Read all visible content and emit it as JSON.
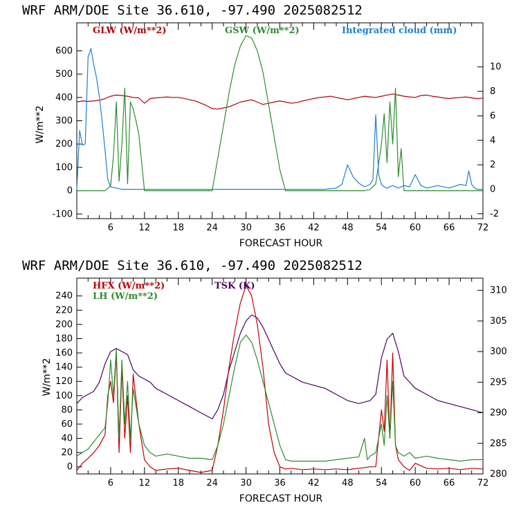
{
  "chart_data": [
    {
      "type": "line",
      "title": "WRF  ARM/DOE Site  36.610, -97.490  2025082512",
      "xlabel": "FORECAST HOUR",
      "ylabel": "W/m**2",
      "xlim": [
        0,
        72
      ],
      "ylim": [
        -120,
        720
      ],
      "y2lim": [
        -2.4,
        13.6
      ],
      "xticks": [
        6,
        12,
        18,
        24,
        30,
        36,
        42,
        48,
        54,
        60,
        66,
        72
      ],
      "yticks": [
        -100,
        0,
        100,
        200,
        300,
        400,
        500,
        600
      ],
      "y2ticks": [
        -2,
        0,
        2,
        4,
        6,
        8,
        10
      ],
      "series": [
        {
          "name": "GLW (W/m**2)",
          "color": "#b00000",
          "axis": "left",
          "x": [
            0,
            1,
            2,
            3,
            4,
            5,
            6,
            7,
            8,
            9,
            10,
            11,
            12,
            13,
            14,
            15,
            16,
            17,
            18,
            19,
            20,
            21,
            22,
            23,
            24,
            25,
            26,
            27,
            28,
            29,
            30,
            31,
            32,
            33,
            34,
            35,
            36,
            37,
            38,
            39,
            40,
            41,
            42,
            43,
            44,
            45,
            46,
            47,
            48,
            49,
            50,
            51,
            52,
            53,
            54,
            55,
            56,
            57,
            58,
            59,
            60,
            61,
            62,
            63,
            64,
            65,
            66,
            67,
            68,
            69,
            70,
            71,
            72
          ],
          "y": [
            380,
            385,
            383,
            385,
            388,
            395,
            405,
            410,
            408,
            405,
            400,
            398,
            375,
            395,
            398,
            400,
            402,
            400,
            400,
            396,
            390,
            385,
            375,
            365,
            352,
            350,
            355,
            360,
            370,
            380,
            385,
            390,
            380,
            370,
            375,
            380,
            385,
            380,
            375,
            378,
            385,
            390,
            395,
            400,
            402,
            405,
            400,
            395,
            390,
            395,
            400,
            405,
            402,
            400,
            405,
            410,
            415,
            410,
            405,
            402,
            400,
            408,
            410,
            405,
            402,
            398,
            395,
            398,
            400,
            402,
            398,
            395,
            397
          ]
        },
        {
          "name": "GSW (W/m**2)",
          "color": "#2e8b2e",
          "axis": "left",
          "x": [
            0,
            1,
            2,
            3,
            4,
            5,
            6,
            6.5,
            7,
            7.5,
            8,
            8.5,
            9,
            9.5,
            10,
            10.5,
            11,
            11.5,
            12,
            24,
            25,
            26,
            27,
            28,
            29,
            30,
            31,
            32,
            33,
            34,
            35,
            36,
            37,
            50,
            51,
            52,
            53,
            54,
            54.5,
            55,
            55.5,
            56,
            56.5,
            57,
            57.5,
            58,
            60,
            72
          ],
          "y": [
            0,
            0,
            0,
            0,
            0,
            0,
            20,
            150,
            380,
            40,
            200,
            440,
            30,
            380,
            350,
            300,
            240,
            120,
            0,
            0,
            140,
            280,
            420,
            540,
            620,
            665,
            655,
            600,
            510,
            370,
            230,
            90,
            0,
            0,
            0,
            5,
            30,
            200,
            330,
            120,
            380,
            200,
            440,
            60,
            180,
            0,
            0,
            0
          ]
        },
        {
          "name": "Integrated cloud (mm)",
          "color": "#1e7fd0",
          "axis": "right",
          "x": [
            0,
            0.5,
            1,
            1.5,
            2,
            2.5,
            3,
            3.5,
            4,
            4.5,
            5,
            5.5,
            6,
            7,
            8,
            12,
            24,
            36,
            44,
            46,
            47,
            48,
            49,
            50,
            51,
            52,
            52.5,
            53,
            53.5,
            54,
            54.5,
            55,
            56,
            57,
            58,
            59,
            60,
            61,
            62,
            64,
            66,
            68,
            69,
            69.5,
            70,
            70.5,
            71,
            72
          ],
          "y": [
            0,
            4.8,
            3.6,
            3.7,
            10.8,
            11.5,
            10.2,
            9.1,
            7.6,
            5.5,
            3.2,
            0.8,
            0.2,
            0.1,
            0,
            0,
            0,
            0,
            0,
            0.1,
            0.4,
            2.0,
            1.0,
            0.5,
            0.2,
            0.4,
            0.8,
            6.1,
            1.2,
            0.4,
            0.2,
            0.1,
            0.3,
            0.1,
            0.3,
            0.2,
            1.2,
            0.3,
            0.1,
            0.3,
            0.1,
            0.4,
            0.3,
            1.5,
            0.4,
            0.1,
            0,
            0
          ]
        }
      ]
    },
    {
      "type": "line",
      "title": "WRF  ARM/DOE Site  36.610, -97.490  2025082512",
      "xlabel": "FORECAST HOUR",
      "ylabel": "W/m**2",
      "xlim": [
        0,
        72
      ],
      "ylim": [
        -10,
        265
      ],
      "y2lim": [
        280,
        312
      ],
      "xticks": [
        6,
        12,
        18,
        24,
        30,
        36,
        42,
        48,
        54,
        60,
        66,
        72
      ],
      "yticks": [
        0,
        20,
        40,
        60,
        80,
        100,
        120,
        140,
        160,
        180,
        200,
        220,
        240
      ],
      "y2ticks": [
        280,
        285,
        290,
        295,
        300,
        305,
        310
      ],
      "series": [
        {
          "name": "TSK (K)",
          "color": "#4b0060",
          "axis": "right",
          "x": [
            0,
            1,
            2,
            3,
            4,
            5,
            6,
            7,
            8,
            9,
            10,
            11,
            12,
            13,
            14,
            16,
            18,
            20,
            22,
            24,
            25,
            26,
            27,
            28,
            29,
            30,
            31,
            32,
            33,
            34,
            35,
            36,
            37,
            38,
            40,
            42,
            44,
            46,
            48,
            50,
            52,
            53,
            54,
            55,
            56,
            57,
            58,
            60,
            62,
            64,
            66,
            68,
            70,
            72
          ],
          "y": [
            291.5,
            292.5,
            293,
            293.5,
            295,
            298,
            300,
            300.5,
            300,
            299.5,
            297,
            296,
            295.5,
            295,
            294,
            293,
            292,
            291,
            290,
            289,
            290.5,
            293,
            297,
            300,
            303,
            305,
            306,
            305.5,
            304,
            302,
            300,
            298,
            296.5,
            296,
            295,
            294.5,
            294,
            293,
            292,
            291.5,
            292,
            293,
            299,
            302,
            303,
            300,
            296,
            294,
            293,
            292,
            291.5,
            291,
            290.5,
            290
          ]
        },
        {
          "name": "HFX (W/m**2)",
          "color": "#c00000",
          "axis": "left",
          "x": [
            0,
            1,
            2,
            3,
            4,
            5,
            5.5,
            6,
            6.5,
            7,
            7.5,
            8,
            8.5,
            9,
            9.5,
            10,
            11,
            12,
            13,
            14,
            16,
            18,
            20,
            22,
            24,
            25,
            26,
            27,
            28,
            29,
            30,
            31,
            32,
            33,
            34,
            35,
            36,
            37,
            38,
            40,
            42,
            44,
            46,
            48,
            50,
            52,
            53,
            54,
            54.5,
            55,
            55.5,
            56,
            56.5,
            57,
            58,
            59,
            60,
            62,
            64,
            66,
            68,
            70,
            72
          ],
          "y": [
            -5,
            5,
            12,
            20,
            30,
            45,
            100,
            120,
            90,
            160,
            20,
            140,
            40,
            100,
            20,
            130,
            60,
            10,
            0,
            -5,
            -3,
            -2,
            -5,
            -8,
            -5,
            30,
            80,
            140,
            190,
            230,
            255,
            240,
            200,
            140,
            60,
            20,
            0,
            -3,
            -2,
            -4,
            -3,
            -4,
            -3,
            -4,
            -2,
            0,
            0,
            80,
            50,
            150,
            40,
            160,
            30,
            10,
            0,
            -5,
            5,
            -2,
            -3,
            -2,
            -4,
            -2,
            -3
          ]
        },
        {
          "name": "LH (W/m**2)",
          "color": "#2e8b2e",
          "axis": "left",
          "x": [
            0,
            1,
            2,
            3,
            4,
            5,
            5.5,
            6,
            6.5,
            7,
            7.5,
            8,
            8.5,
            9,
            9.5,
            10,
            11,
            12,
            13,
            14,
            16,
            18,
            20,
            22,
            24,
            25,
            26,
            27,
            28,
            29,
            30,
            31,
            32,
            33,
            34,
            35,
            36,
            37,
            38,
            40,
            42,
            44,
            46,
            48,
            50,
            51,
            51.5,
            52,
            53,
            54,
            54.5,
            55,
            55.5,
            56,
            56.5,
            57,
            58,
            59,
            60,
            62,
            64,
            66,
            68,
            70,
            72
          ],
          "y": [
            15,
            20,
            25,
            35,
            45,
            55,
            90,
            150,
            100,
            165,
            40,
            150,
            60,
            120,
            40,
            110,
            60,
            30,
            20,
            15,
            18,
            15,
            12,
            12,
            10,
            30,
            60,
            100,
            140,
            175,
            185,
            175,
            150,
            120,
            90,
            60,
            30,
            10,
            8,
            8,
            8,
            8,
            10,
            12,
            14,
            40,
            10,
            15,
            20,
            60,
            30,
            100,
            40,
            120,
            30,
            20,
            15,
            20,
            12,
            15,
            12,
            10,
            8,
            10,
            10
          ]
        }
      ]
    }
  ]
}
